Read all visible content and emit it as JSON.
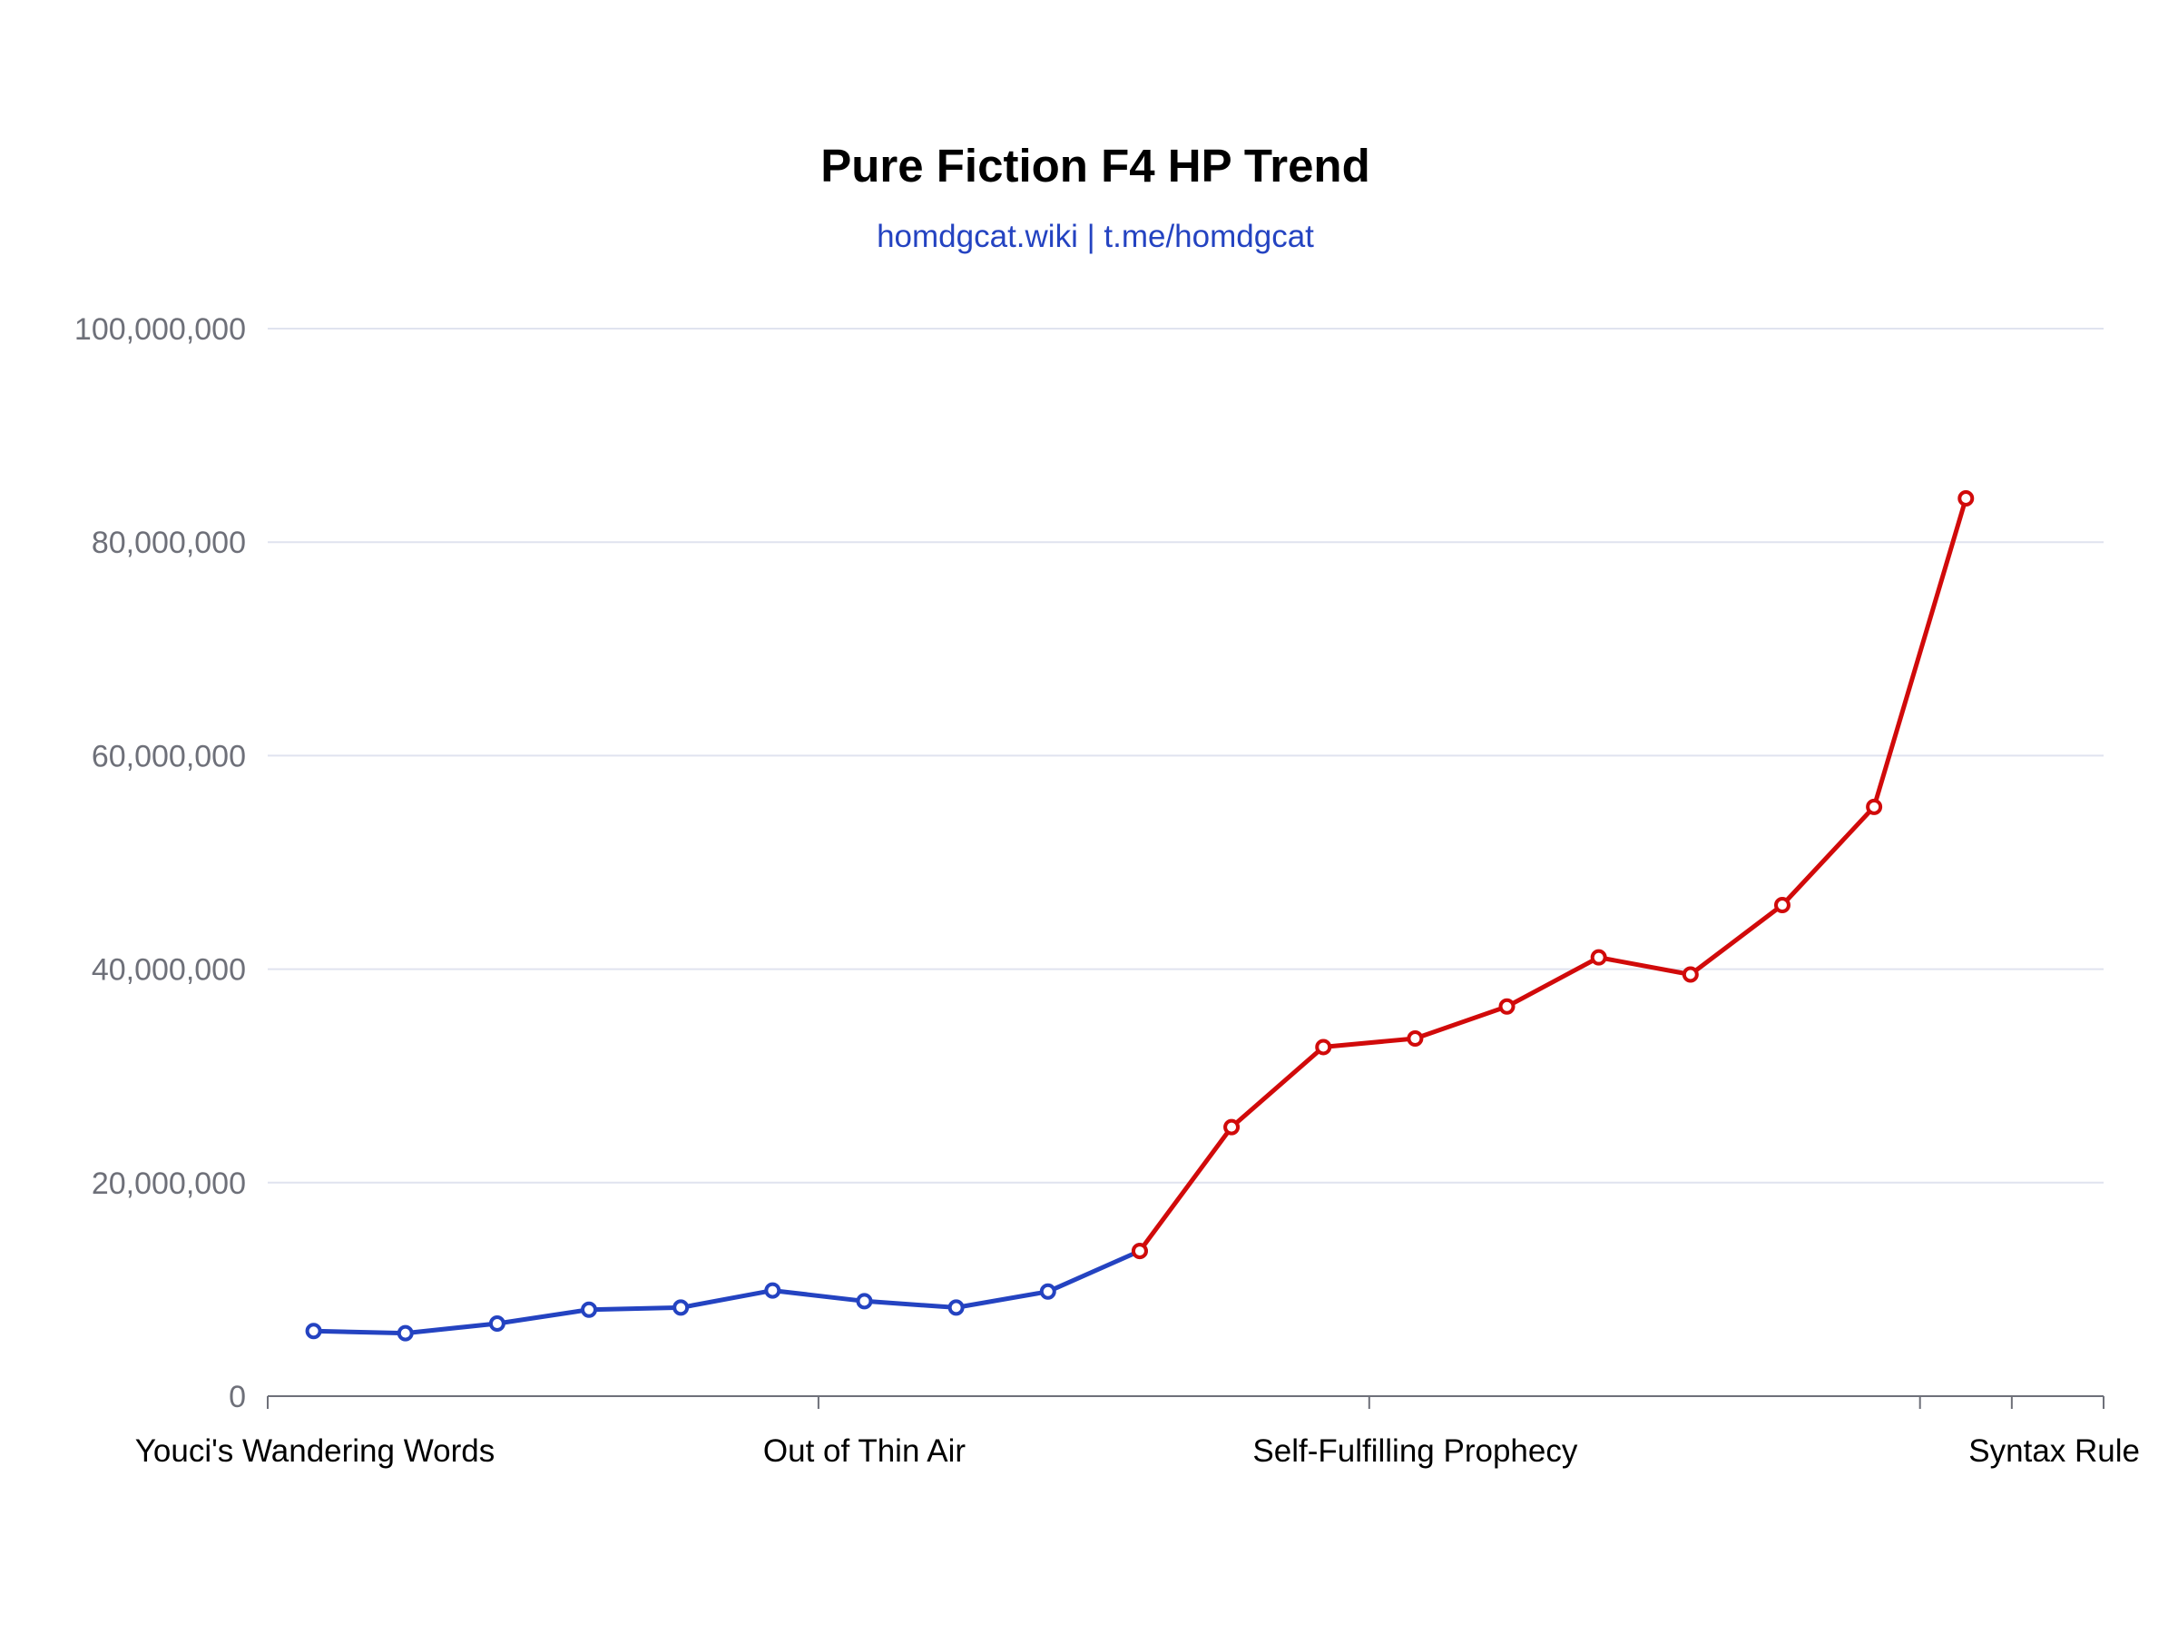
{
  "chart_data": {
    "type": "line",
    "title": "Pure Fiction F4 HP Trend",
    "subtitle": "homdgcat.wiki | t.me/homdgcat",
    "xlabel": "",
    "ylabel": "",
    "ylim": [
      0,
      100000000
    ],
    "yticks": [
      0,
      20000000,
      40000000,
      60000000,
      80000000,
      100000000
    ],
    "ytick_labels": [
      "0",
      "20,000,000",
      "40,000,000",
      "60,000,000",
      "80,000,000",
      "100,000,000"
    ],
    "x_count": 20,
    "x_labels": [
      {
        "index": 0,
        "label": "Youci's Wandering Words"
      },
      {
        "index": 6,
        "label": "Out of Thin Air"
      },
      {
        "index": 12,
        "label": "Self-Fulfilling Prophecy"
      },
      {
        "index": 19,
        "label": "Syntax Rule"
      }
    ],
    "x_ticks": [
      0,
      6,
      12,
      18,
      19
    ],
    "grid": true,
    "legend": "none",
    "series": [
      {
        "color": "#2443c1",
        "start_index": 0,
        "values": [
          6100000,
          5900000,
          6800000,
          8100000,
          8300000,
          9900000,
          8900000,
          8300000,
          9800000,
          13600000
        ]
      },
      {
        "color": "#d10a0a",
        "start_index": 9,
        "values": [
          13600000,
          25200000,
          32700000,
          33500000,
          36500000,
          41100000,
          39500000,
          46000000,
          55200000,
          84100000
        ]
      }
    ],
    "colors": {
      "subtitle": "#2443c1",
      "grid": "#e0e3ef",
      "axis": "#6e7079",
      "ytick_text": "#6e7079",
      "xtick_text": "#000000",
      "title": "#000000"
    }
  }
}
